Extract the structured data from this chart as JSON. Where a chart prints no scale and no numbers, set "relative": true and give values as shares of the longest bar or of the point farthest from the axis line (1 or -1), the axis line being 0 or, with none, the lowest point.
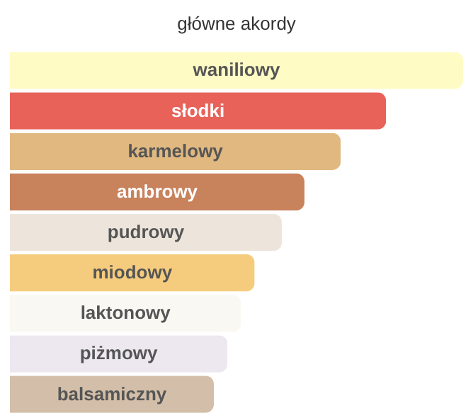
{
  "chart_data": {
    "type": "bar",
    "orientation": "horizontal",
    "relative": true,
    "title": "główne akordy",
    "categories": [
      "waniliowy",
      "słodki",
      "karmelowy",
      "ambrowy",
      "pudrowy",
      "miodowy",
      "laktonowy",
      "piżmowy",
      "balsamiczny"
    ],
    "values": [
      1,
      0.83,
      0.73,
      0.65,
      0.6,
      0.54,
      0.51,
      0.48,
      0.45
    ],
    "colors": [
      "#fffbc4",
      "#e8625a",
      "#e0b880",
      "#c8825c",
      "#ede5dc",
      "#f5cc7e",
      "#faf8f2",
      "#ede7ef",
      "#d3bfa9"
    ]
  }
}
